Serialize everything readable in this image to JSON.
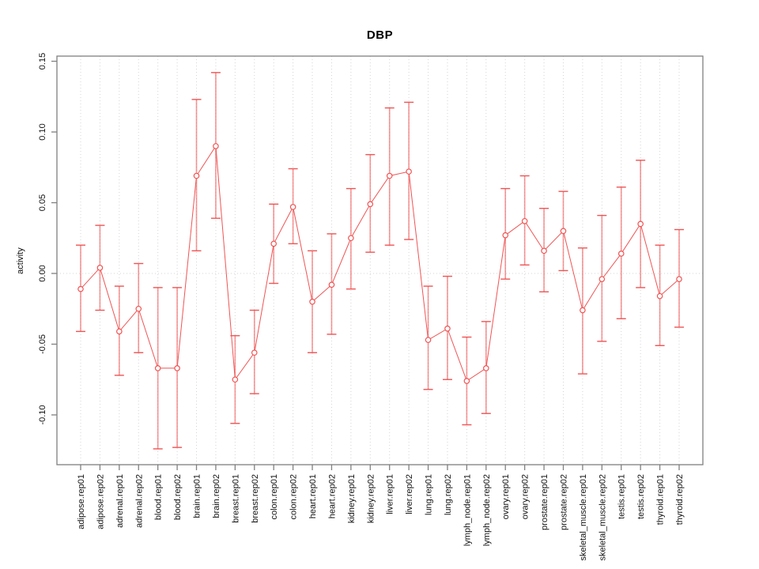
{
  "window": {
    "background": "#ffffff"
  },
  "chart_data": {
    "type": "line",
    "title": "DBP",
    "xlabel": "",
    "ylabel": "activity",
    "categories": [
      "adipose.rep01",
      "adipose.rep02",
      "adrenal.rep01",
      "adrenal.rep02",
      "blood.rep01",
      "blood.rep02",
      "brain.rep01",
      "brain.rep02",
      "breast.rep01",
      "breast.rep02",
      "colon.rep01",
      "colon.rep02",
      "heart.rep01",
      "heart.rep02",
      "kidney.rep01",
      "kidney.rep02",
      "liver.rep01",
      "liver.rep02",
      "lung.rep01",
      "lung.rep02",
      "lymph_node.rep01",
      "lymph_node.rep02",
      "ovary.rep01",
      "ovary.rep02",
      "prostate.rep01",
      "prostate.rep02",
      "skeletal_muscle.rep01",
      "skeletal_muscle.rep02",
      "testis.rep01",
      "testis.rep02",
      "thyroid.rep01",
      "thyroid.rep02"
    ],
    "series": [
      {
        "name": "activity",
        "marker": "open-circle",
        "values": [
          -0.011,
          0.004,
          -0.041,
          -0.025,
          -0.067,
          -0.067,
          0.069,
          0.09,
          -0.075,
          -0.056,
          0.021,
          0.047,
          -0.02,
          -0.008,
          0.025,
          0.049,
          0.069,
          0.072,
          -0.047,
          -0.039,
          -0.076,
          -0.067,
          0.027,
          0.037,
          0.016,
          0.03,
          -0.026,
          -0.004,
          0.014,
          0.035,
          -0.016,
          -0.004
        ],
        "ci_high": [
          0.02,
          0.034,
          -0.009,
          0.007,
          -0.01,
          -0.01,
          0.123,
          0.142,
          -0.044,
          -0.026,
          0.049,
          0.074,
          0.016,
          0.028,
          0.06,
          0.084,
          0.117,
          0.121,
          -0.009,
          -0.002,
          -0.045,
          -0.034,
          0.06,
          0.069,
          0.046,
          0.058,
          0.018,
          0.041,
          0.061,
          0.08,
          0.02,
          0.031
        ],
        "ci_low": [
          -0.041,
          -0.026,
          -0.072,
          -0.056,
          -0.124,
          -0.123,
          0.016,
          0.039,
          -0.106,
          -0.085,
          -0.007,
          0.021,
          -0.056,
          -0.043,
          -0.011,
          0.015,
          0.02,
          0.024,
          -0.082,
          -0.075,
          -0.107,
          -0.099,
          -0.004,
          0.006,
          -0.013,
          0.002,
          -0.071,
          -0.048,
          -0.032,
          -0.01,
          -0.051,
          -0.038
        ]
      }
    ],
    "ytick_labels": [
      "0.15",
      "0.10",
      "0.05",
      "0.00",
      "-0.05",
      "-0.10"
    ],
    "yticks": [
      0.15,
      0.1,
      0.05,
      0.0,
      -0.05,
      -0.1
    ],
    "ylim": [
      -0.135,
      0.154
    ],
    "grid": "vertical-dotted",
    "zero_line": true,
    "legend": "none",
    "colors": {
      "series": "#f05454",
      "error_bar": "rgba(240,84,84,0.62)",
      "grid": "#d4d4d4",
      "axis": "#808080",
      "text": "#111111"
    }
  }
}
